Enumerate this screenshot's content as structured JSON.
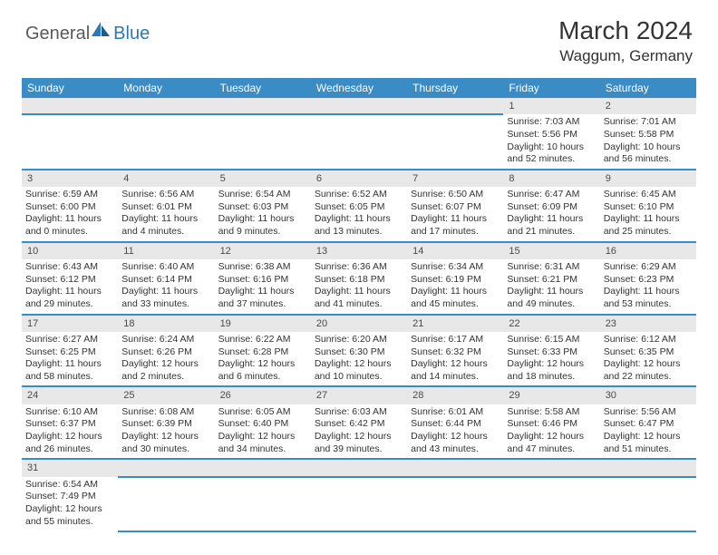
{
  "logo": {
    "general": "General",
    "blue": "Blue"
  },
  "title": "March 2024",
  "location": "Waggum, Germany",
  "colors": {
    "header_bg": "#3b8bc4",
    "header_text": "#ffffff",
    "daynum_bg": "#e8e8e8",
    "border": "#3b8bc4",
    "text": "#333333",
    "logo_gray": "#5a5a5a",
    "logo_blue": "#2a7ab8"
  },
  "day_headers": [
    "Sunday",
    "Monday",
    "Tuesday",
    "Wednesday",
    "Thursday",
    "Friday",
    "Saturday"
  ],
  "weeks": [
    [
      null,
      null,
      null,
      null,
      null,
      {
        "n": "1",
        "sr": "Sunrise: 7:03 AM",
        "ss": "Sunset: 5:56 PM",
        "dl": "Daylight: 10 hours and 52 minutes."
      },
      {
        "n": "2",
        "sr": "Sunrise: 7:01 AM",
        "ss": "Sunset: 5:58 PM",
        "dl": "Daylight: 10 hours and 56 minutes."
      }
    ],
    [
      {
        "n": "3",
        "sr": "Sunrise: 6:59 AM",
        "ss": "Sunset: 6:00 PM",
        "dl": "Daylight: 11 hours and 0 minutes."
      },
      {
        "n": "4",
        "sr": "Sunrise: 6:56 AM",
        "ss": "Sunset: 6:01 PM",
        "dl": "Daylight: 11 hours and 4 minutes."
      },
      {
        "n": "5",
        "sr": "Sunrise: 6:54 AM",
        "ss": "Sunset: 6:03 PM",
        "dl": "Daylight: 11 hours and 9 minutes."
      },
      {
        "n": "6",
        "sr": "Sunrise: 6:52 AM",
        "ss": "Sunset: 6:05 PM",
        "dl": "Daylight: 11 hours and 13 minutes."
      },
      {
        "n": "7",
        "sr": "Sunrise: 6:50 AM",
        "ss": "Sunset: 6:07 PM",
        "dl": "Daylight: 11 hours and 17 minutes."
      },
      {
        "n": "8",
        "sr": "Sunrise: 6:47 AM",
        "ss": "Sunset: 6:09 PM",
        "dl": "Daylight: 11 hours and 21 minutes."
      },
      {
        "n": "9",
        "sr": "Sunrise: 6:45 AM",
        "ss": "Sunset: 6:10 PM",
        "dl": "Daylight: 11 hours and 25 minutes."
      }
    ],
    [
      {
        "n": "10",
        "sr": "Sunrise: 6:43 AM",
        "ss": "Sunset: 6:12 PM",
        "dl": "Daylight: 11 hours and 29 minutes."
      },
      {
        "n": "11",
        "sr": "Sunrise: 6:40 AM",
        "ss": "Sunset: 6:14 PM",
        "dl": "Daylight: 11 hours and 33 minutes."
      },
      {
        "n": "12",
        "sr": "Sunrise: 6:38 AM",
        "ss": "Sunset: 6:16 PM",
        "dl": "Daylight: 11 hours and 37 minutes."
      },
      {
        "n": "13",
        "sr": "Sunrise: 6:36 AM",
        "ss": "Sunset: 6:18 PM",
        "dl": "Daylight: 11 hours and 41 minutes."
      },
      {
        "n": "14",
        "sr": "Sunrise: 6:34 AM",
        "ss": "Sunset: 6:19 PM",
        "dl": "Daylight: 11 hours and 45 minutes."
      },
      {
        "n": "15",
        "sr": "Sunrise: 6:31 AM",
        "ss": "Sunset: 6:21 PM",
        "dl": "Daylight: 11 hours and 49 minutes."
      },
      {
        "n": "16",
        "sr": "Sunrise: 6:29 AM",
        "ss": "Sunset: 6:23 PM",
        "dl": "Daylight: 11 hours and 53 minutes."
      }
    ],
    [
      {
        "n": "17",
        "sr": "Sunrise: 6:27 AM",
        "ss": "Sunset: 6:25 PM",
        "dl": "Daylight: 11 hours and 58 minutes."
      },
      {
        "n": "18",
        "sr": "Sunrise: 6:24 AM",
        "ss": "Sunset: 6:26 PM",
        "dl": "Daylight: 12 hours and 2 minutes."
      },
      {
        "n": "19",
        "sr": "Sunrise: 6:22 AM",
        "ss": "Sunset: 6:28 PM",
        "dl": "Daylight: 12 hours and 6 minutes."
      },
      {
        "n": "20",
        "sr": "Sunrise: 6:20 AM",
        "ss": "Sunset: 6:30 PM",
        "dl": "Daylight: 12 hours and 10 minutes."
      },
      {
        "n": "21",
        "sr": "Sunrise: 6:17 AM",
        "ss": "Sunset: 6:32 PM",
        "dl": "Daylight: 12 hours and 14 minutes."
      },
      {
        "n": "22",
        "sr": "Sunrise: 6:15 AM",
        "ss": "Sunset: 6:33 PM",
        "dl": "Daylight: 12 hours and 18 minutes."
      },
      {
        "n": "23",
        "sr": "Sunrise: 6:12 AM",
        "ss": "Sunset: 6:35 PM",
        "dl": "Daylight: 12 hours and 22 minutes."
      }
    ],
    [
      {
        "n": "24",
        "sr": "Sunrise: 6:10 AM",
        "ss": "Sunset: 6:37 PM",
        "dl": "Daylight: 12 hours and 26 minutes."
      },
      {
        "n": "25",
        "sr": "Sunrise: 6:08 AM",
        "ss": "Sunset: 6:39 PM",
        "dl": "Daylight: 12 hours and 30 minutes."
      },
      {
        "n": "26",
        "sr": "Sunrise: 6:05 AM",
        "ss": "Sunset: 6:40 PM",
        "dl": "Daylight: 12 hours and 34 minutes."
      },
      {
        "n": "27",
        "sr": "Sunrise: 6:03 AM",
        "ss": "Sunset: 6:42 PM",
        "dl": "Daylight: 12 hours and 39 minutes."
      },
      {
        "n": "28",
        "sr": "Sunrise: 6:01 AM",
        "ss": "Sunset: 6:44 PM",
        "dl": "Daylight: 12 hours and 43 minutes."
      },
      {
        "n": "29",
        "sr": "Sunrise: 5:58 AM",
        "ss": "Sunset: 6:46 PM",
        "dl": "Daylight: 12 hours and 47 minutes."
      },
      {
        "n": "30",
        "sr": "Sunrise: 5:56 AM",
        "ss": "Sunset: 6:47 PM",
        "dl": "Daylight: 12 hours and 51 minutes."
      }
    ],
    [
      {
        "n": "31",
        "sr": "Sunrise: 6:54 AM",
        "ss": "Sunset: 7:49 PM",
        "dl": "Daylight: 12 hours and 55 minutes."
      },
      null,
      null,
      null,
      null,
      null,
      null
    ]
  ]
}
